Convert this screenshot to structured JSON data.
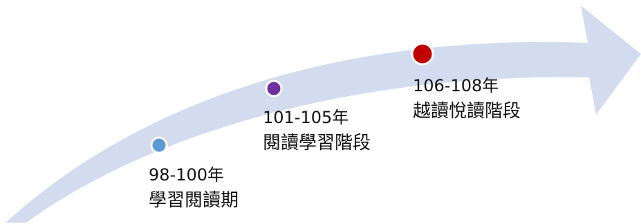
{
  "arrow": {
    "color": "#d3dcef"
  },
  "milestones": [
    {
      "range": "98-100年",
      "phase": "學習閱讀期",
      "dot_color": "#5b9bd5"
    },
    {
      "range": "101-105年",
      "phase": "閱讀學習階段",
      "dot_color": "#7030a0"
    },
    {
      "range": "106-108年",
      "phase": "越讀悅讀階段",
      "dot_color": "#c00000"
    }
  ]
}
